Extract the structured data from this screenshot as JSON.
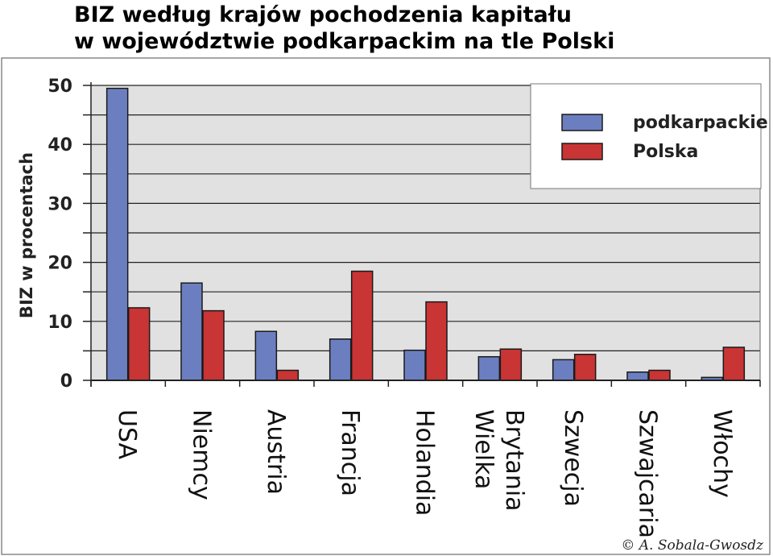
{
  "chart_data": {
    "type": "bar",
    "title": "BIZ według krajów pochodzenia kapitału\nw województwie podkarpackim na tle Polski",
    "ylabel": "BIZ w procentach",
    "xlabel": "",
    "ylim": [
      0,
      50
    ],
    "yticks": [
      0,
      10,
      20,
      30,
      40,
      50
    ],
    "grid": true,
    "legend_position": "top-right",
    "categories": [
      "USA",
      "Niemcy",
      "Austria",
      "Francja",
      "Holandia",
      "Wielka\nBrytania",
      "Szwecja",
      "Szwajcaria",
      "Włochy"
    ],
    "series": [
      {
        "name": "podkarpackie",
        "color": "#6b7fc0",
        "values": [
          49.5,
          16.5,
          8.3,
          7.0,
          5.1,
          4.0,
          3.5,
          1.4,
          0.5
        ]
      },
      {
        "name": "Polska",
        "color": "#c93434",
        "values": [
          12.3,
          11.8,
          1.7,
          18.5,
          13.3,
          5.3,
          4.4,
          1.7,
          5.6
        ]
      }
    ],
    "plot_background": "#e1e1e1",
    "credit": "© A. Sobala-Gwosdz"
  }
}
